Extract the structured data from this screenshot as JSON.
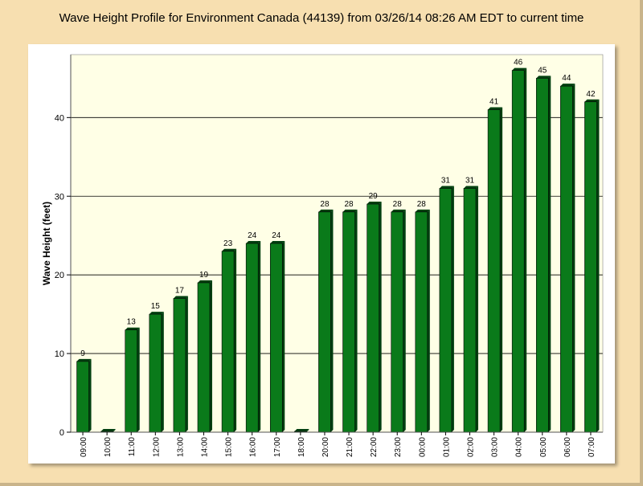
{
  "chart_data": {
    "type": "bar",
    "title": "Wave Height Profile for Environment Canada (44139) from 03/26/14 08:26 AM EDT to current time",
    "xlabel": "",
    "ylabel": "Wave Height (feet)",
    "ylim": [
      0,
      48
    ],
    "yticks": [
      0,
      10,
      20,
      30,
      40
    ],
    "grid": true,
    "categories": [
      "09:00",
      "10:00",
      "11:00",
      "12:00",
      "13:00",
      "14:00",
      "15:00",
      "16:00",
      "17:00",
      "18:00",
      "20:00",
      "21:00",
      "22:00",
      "23:00",
      "00:00",
      "01:00",
      "02:00",
      "03:00",
      "04:00",
      "05:00",
      "06:00",
      "07:00"
    ],
    "values": [
      9,
      0,
      13,
      15,
      17,
      19,
      23,
      24,
      24,
      0,
      28,
      28,
      29,
      28,
      28,
      31,
      31,
      41,
      46,
      45,
      44,
      42
    ],
    "value_labels": [
      "9",
      "",
      "13",
      "15",
      "17",
      "19",
      "23",
      "24",
      "24",
      "",
      "28",
      "28",
      "29",
      "28",
      "28",
      "31",
      "31",
      "41",
      "46",
      "45",
      "44",
      "42"
    ],
    "colors": {
      "bar": "#0a7a1a",
      "bar_dark": "#034010",
      "plot_bg": "#ffffe6",
      "page_bg": "#f7dfb0"
    }
  }
}
